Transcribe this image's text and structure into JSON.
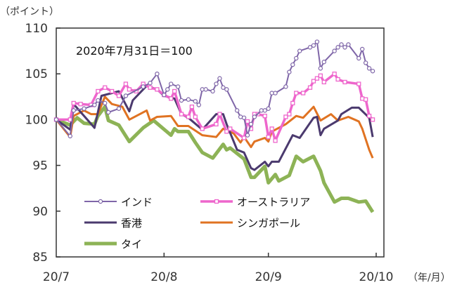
{
  "chart_data": {
    "type": "line",
    "ylabel": "（ポイント）",
    "xunit": "（年/月）",
    "annotation": "2020年7月31日＝100",
    "ylim": [
      85,
      110
    ],
    "yticks": [
      "85",
      "90",
      "95",
      "100",
      "105",
      "110"
    ],
    "xlim": [
      "2020-07-31",
      "2020-11-01"
    ],
    "xticks": [
      {
        "label": "20/7",
        "date": "2020-07-31"
      },
      {
        "label": "20/8",
        "date": "2020-08-31"
      },
      {
        "label": "20/9",
        "date": "2020-09-30"
      },
      {
        "label": "20/10",
        "date": "2020-10-31"
      }
    ],
    "grid": false,
    "legend_position": "bottom-left",
    "series": [
      {
        "name": "インド",
        "color": "#7F66A8",
        "marker": "circle",
        "points": [
          [
            "2020-07-31",
            100
          ],
          [
            "2020-08-04",
            98.2
          ],
          [
            "2020-08-05",
            101.0
          ],
          [
            "2020-08-08",
            101.2
          ],
          [
            "2020-08-11",
            101.6
          ],
          [
            "2020-08-12",
            102.1
          ],
          [
            "2020-08-14",
            101.8
          ],
          [
            "2020-08-15",
            100.8
          ],
          [
            "2020-08-18",
            101.2
          ],
          [
            "2020-08-20",
            102.6
          ],
          [
            "2020-08-25",
            103.6
          ],
          [
            "2020-08-27",
            104.0
          ],
          [
            "2020-08-29",
            105.0
          ],
          [
            "2020-08-31",
            102.7
          ],
          [
            "2020-09-01",
            103.3
          ],
          [
            "2020-09-02",
            103.9
          ],
          [
            "2020-09-04",
            103.6
          ],
          [
            "2020-09-05",
            102.1
          ],
          [
            "2020-09-07",
            102.2
          ],
          [
            "2020-09-09",
            102.0
          ],
          [
            "2020-09-10",
            101.6
          ],
          [
            "2020-09-11",
            103.3
          ],
          [
            "2020-09-12",
            103.3
          ],
          [
            "2020-09-14",
            103.1
          ],
          [
            "2020-09-15",
            103.9
          ],
          [
            "2020-09-16",
            104.5
          ],
          [
            "2020-09-17",
            103.5
          ],
          [
            "2020-09-18",
            103.3
          ],
          [
            "2020-09-21",
            101.0
          ],
          [
            "2020-09-22",
            100.3
          ],
          [
            "2020-09-23",
            100.2
          ],
          [
            "2020-09-24",
            98.3
          ],
          [
            "2020-09-25",
            99.5
          ],
          [
            "2020-09-26",
            100.3
          ],
          [
            "2020-09-28",
            101.0
          ],
          [
            "2020-09-29",
            101.0
          ],
          [
            "2020-09-30",
            101.2
          ],
          [
            "2020-10-01",
            102.9
          ],
          [
            "2020-10-02",
            102.9
          ],
          [
            "2020-10-05",
            103.6
          ],
          [
            "2020-10-06",
            105.2
          ],
          [
            "2020-10-07",
            106.0
          ],
          [
            "2020-10-08",
            106.7
          ],
          [
            "2020-10-09",
            107.5
          ],
          [
            "2020-10-12",
            107.9
          ],
          [
            "2020-10-13",
            108.1
          ],
          [
            "2020-10-14",
            108.5
          ],
          [
            "2020-10-15",
            105.6
          ],
          [
            "2020-10-16",
            106.3
          ],
          [
            "2020-10-19",
            107.5
          ],
          [
            "2020-10-20",
            107.9
          ],
          [
            "2020-10-21",
            108.2
          ],
          [
            "2020-10-22",
            107.9
          ],
          [
            "2020-10-23",
            108.2
          ],
          [
            "2020-10-26",
            106.7
          ],
          [
            "2020-10-27",
            107.7
          ],
          [
            "2020-10-28",
            106.2
          ],
          [
            "2020-10-29",
            105.6
          ],
          [
            "2020-10-30",
            105.3
          ]
        ]
      },
      {
        "name": "オーストラリア",
        "color": "#EE66CC",
        "marker": "square",
        "points": [
          [
            "2020-07-31",
            100
          ],
          [
            "2020-08-04",
            100.0
          ],
          [
            "2020-08-05",
            101.8
          ],
          [
            "2020-08-07",
            101.7
          ],
          [
            "2020-08-10",
            101.6
          ],
          [
            "2020-08-12",
            103.1
          ],
          [
            "2020-08-14",
            103.5
          ],
          [
            "2020-08-16",
            103.1
          ],
          [
            "2020-08-18",
            102.6
          ],
          [
            "2020-08-20",
            103.9
          ],
          [
            "2020-08-21",
            103.3
          ],
          [
            "2020-08-23",
            103.1
          ],
          [
            "2020-08-25",
            103.9
          ],
          [
            "2020-08-27",
            103.5
          ],
          [
            "2020-08-29",
            103.3
          ],
          [
            "2020-08-31",
            102.7
          ],
          [
            "2020-09-02",
            102.3
          ],
          [
            "2020-09-03",
            103.1
          ],
          [
            "2020-09-05",
            100.6
          ],
          [
            "2020-09-07",
            100.3
          ],
          [
            "2020-09-08",
            101.4
          ],
          [
            "2020-09-09",
            100.3
          ],
          [
            "2020-09-11",
            99.0
          ],
          [
            "2020-09-15",
            99.5
          ],
          [
            "2020-09-16",
            100.6
          ],
          [
            "2020-09-18",
            98.7
          ],
          [
            "2020-09-19",
            99.0
          ],
          [
            "2020-09-23",
            98.0
          ],
          [
            "2020-09-24",
            99.8
          ],
          [
            "2020-09-25",
            99.0
          ],
          [
            "2020-09-26",
            100.6
          ],
          [
            "2020-09-27",
            100.6
          ],
          [
            "2020-09-29",
            100.4
          ],
          [
            "2020-09-30",
            98.1
          ],
          [
            "2020-10-01",
            99.0
          ],
          [
            "2020-10-02",
            97.7
          ],
          [
            "2020-10-05",
            100.3
          ],
          [
            "2020-10-06",
            100.6
          ],
          [
            "2020-10-07",
            101.8
          ],
          [
            "2020-10-08",
            102.9
          ],
          [
            "2020-10-10",
            102.9
          ],
          [
            "2020-10-12",
            103.5
          ],
          [
            "2020-10-13",
            104.2
          ],
          [
            "2020-10-14",
            104.5
          ],
          [
            "2020-10-15",
            104.8
          ],
          [
            "2020-10-16",
            104.1
          ],
          [
            "2020-10-19",
            105.0
          ],
          [
            "2020-10-20",
            104.4
          ],
          [
            "2020-10-22",
            104.1
          ],
          [
            "2020-10-26",
            103.9
          ],
          [
            "2020-10-27",
            102.3
          ],
          [
            "2020-10-28",
            102.2
          ],
          [
            "2020-10-29",
            100.4
          ],
          [
            "2020-10-30",
            100.0
          ]
        ]
      },
      {
        "name": "香港",
        "color": "#4B3A6E",
        "marker": "none",
        "points": [
          [
            "2020-07-31",
            100
          ],
          [
            "2020-08-04",
            98.9
          ],
          [
            "2020-08-05",
            101.7
          ],
          [
            "2020-08-08",
            100.4
          ],
          [
            "2020-08-11",
            99.1
          ],
          [
            "2020-08-13",
            102.6
          ],
          [
            "2020-08-18",
            103.1
          ],
          [
            "2020-08-21",
            100.9
          ],
          [
            "2020-08-22",
            102.1
          ],
          [
            "2020-08-26",
            103.7
          ],
          [
            "2020-08-29",
            103.3
          ],
          [
            "2020-08-31",
            102.6
          ],
          [
            "2020-09-03",
            102.3
          ],
          [
            "2020-09-05",
            100.6
          ],
          [
            "2020-09-07",
            100.2
          ],
          [
            "2020-09-11",
            98.9
          ],
          [
            "2020-09-15",
            100.6
          ],
          [
            "2020-09-17",
            100.6
          ],
          [
            "2020-09-18",
            99.5
          ],
          [
            "2020-09-21",
            96.7
          ],
          [
            "2020-09-23",
            96.4
          ],
          [
            "2020-09-25",
            94.7
          ],
          [
            "2020-09-26",
            94.5
          ],
          [
            "2020-09-29",
            95.4
          ],
          [
            "2020-09-30",
            94.9
          ],
          [
            "2020-10-01",
            95.4
          ],
          [
            "2020-10-03",
            95.4
          ],
          [
            "2020-10-07",
            98.3
          ],
          [
            "2020-10-09",
            98.0
          ],
          [
            "2020-10-13",
            100.2
          ],
          [
            "2020-10-14",
            100.3
          ],
          [
            "2020-10-15",
            98.3
          ],
          [
            "2020-10-16",
            99.0
          ],
          [
            "2020-10-20",
            99.9
          ],
          [
            "2020-10-21",
            100.6
          ],
          [
            "2020-10-24",
            101.3
          ],
          [
            "2020-10-26",
            101.3
          ],
          [
            "2020-10-29",
            100.2
          ],
          [
            "2020-10-30",
            98.1
          ]
        ]
      },
      {
        "name": "シンガポール",
        "color": "#E07322",
        "marker": "none",
        "points": [
          [
            "2020-07-31",
            100
          ],
          [
            "2020-08-04",
            98.1
          ],
          [
            "2020-08-05",
            100.4
          ],
          [
            "2020-08-08",
            101.0
          ],
          [
            "2020-08-10",
            100.6
          ],
          [
            "2020-08-12",
            100.6
          ],
          [
            "2020-08-14",
            102.5
          ],
          [
            "2020-08-16",
            101.7
          ],
          [
            "2020-08-19",
            101.4
          ],
          [
            "2020-08-21",
            100.0
          ],
          [
            "2020-08-26",
            101.0
          ],
          [
            "2020-08-27",
            99.9
          ],
          [
            "2020-08-29",
            100.3
          ],
          [
            "2020-09-02",
            100.4
          ],
          [
            "2020-09-04",
            99.3
          ],
          [
            "2020-09-07",
            99.3
          ],
          [
            "2020-09-11",
            98.3
          ],
          [
            "2020-09-15",
            98.1
          ],
          [
            "2020-09-17",
            99.0
          ],
          [
            "2020-09-20",
            98.5
          ],
          [
            "2020-09-22",
            97.5
          ],
          [
            "2020-09-23",
            98.1
          ],
          [
            "2020-09-25",
            97.0
          ],
          [
            "2020-09-26",
            97.6
          ],
          [
            "2020-09-29",
            98.0
          ],
          [
            "2020-09-30",
            97.6
          ],
          [
            "2020-10-01",
            98.7
          ],
          [
            "2020-10-05",
            99.5
          ],
          [
            "2020-10-08",
            100.4
          ],
          [
            "2020-10-10",
            100.2
          ],
          [
            "2020-10-13",
            101.4
          ],
          [
            "2020-10-15",
            99.9
          ],
          [
            "2020-10-18",
            100.6
          ],
          [
            "2020-10-20",
            99.9
          ],
          [
            "2020-10-23",
            100.3
          ],
          [
            "2020-10-26",
            99.8
          ],
          [
            "2020-10-27",
            99.0
          ],
          [
            "2020-10-29",
            96.7
          ],
          [
            "2020-10-30",
            95.8
          ]
        ]
      },
      {
        "name": "タイ",
        "color": "#8DB356",
        "marker": "none",
        "points": [
          [
            "2020-07-31",
            100
          ],
          [
            "2020-08-04",
            99.4
          ],
          [
            "2020-08-06",
            100.2
          ],
          [
            "2020-08-08",
            99.6
          ],
          [
            "2020-08-11",
            99.5
          ],
          [
            "2020-08-12",
            100.4
          ],
          [
            "2020-08-14",
            101.4
          ],
          [
            "2020-08-15",
            99.9
          ],
          [
            "2020-08-18",
            99.4
          ],
          [
            "2020-08-21",
            97.6
          ],
          [
            "2020-08-25",
            99.1
          ],
          [
            "2020-08-28",
            99.9
          ],
          [
            "2020-09-02",
            98.3
          ],
          [
            "2020-09-03",
            99.0
          ],
          [
            "2020-09-04",
            98.7
          ],
          [
            "2020-09-07",
            98.7
          ],
          [
            "2020-09-09",
            97.5
          ],
          [
            "2020-09-11",
            96.4
          ],
          [
            "2020-09-14",
            95.8
          ],
          [
            "2020-09-17",
            97.3
          ],
          [
            "2020-09-18",
            96.7
          ],
          [
            "2020-09-19",
            96.9
          ],
          [
            "2020-09-23",
            95.7
          ],
          [
            "2020-09-25",
            93.7
          ],
          [
            "2020-09-26",
            93.7
          ],
          [
            "2020-09-29",
            94.9
          ],
          [
            "2020-09-30",
            93.1
          ],
          [
            "2020-10-02",
            94.0
          ],
          [
            "2020-10-03",
            93.3
          ],
          [
            "2020-10-06",
            93.9
          ],
          [
            "2020-10-08",
            96.0
          ],
          [
            "2020-10-10",
            95.4
          ],
          [
            "2020-10-13",
            96.0
          ],
          [
            "2020-10-15",
            94.4
          ],
          [
            "2020-10-16",
            93.1
          ],
          [
            "2020-10-19",
            91.0
          ],
          [
            "2020-10-21",
            91.4
          ],
          [
            "2020-10-23",
            91.4
          ],
          [
            "2020-10-26",
            91.0
          ],
          [
            "2020-10-28",
            91.1
          ],
          [
            "2020-10-30",
            89.9
          ]
        ]
      }
    ]
  }
}
